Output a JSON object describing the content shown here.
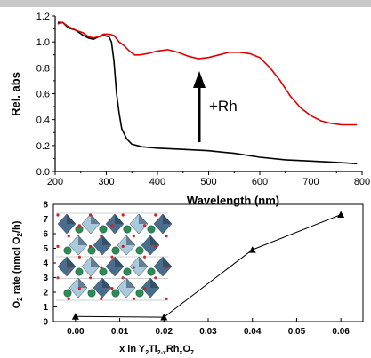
{
  "chart_data": [
    {
      "type": "line",
      "xlabel": "Wavelength (nm)",
      "ylabel": "Rel. abs",
      "xlim": [
        200,
        800
      ],
      "ylim": [
        0.0,
        1.2
      ],
      "x_ticks": [
        "200",
        "300",
        "400",
        "500",
        "600",
        "700",
        "800"
      ],
      "y_ticks": [
        "0.0",
        "0.2",
        "0.4",
        "0.6",
        "0.8",
        "1.0",
        "1.2"
      ],
      "annotation": "+Rh",
      "series": [
        {
          "color": "#000000",
          "points": [
            [
              205,
              1.15
            ],
            [
              215,
              1.15
            ],
            [
              225,
              1.11
            ],
            [
              240,
              1.09
            ],
            [
              255,
              1.05
            ],
            [
              265,
              1.03
            ],
            [
              275,
              1.02
            ],
            [
              285,
              1.04
            ],
            [
              295,
              1.05
            ],
            [
              305,
              1.04
            ],
            [
              310,
              1.0
            ],
            [
              315,
              0.85
            ],
            [
              320,
              0.6
            ],
            [
              325,
              0.45
            ],
            [
              330,
              0.33
            ],
            [
              340,
              0.25
            ],
            [
              350,
              0.21
            ],
            [
              370,
              0.19
            ],
            [
              400,
              0.18
            ],
            [
              450,
              0.17
            ],
            [
              500,
              0.16
            ],
            [
              550,
              0.14
            ],
            [
              600,
              0.11
            ],
            [
              650,
              0.09
            ],
            [
              700,
              0.08
            ],
            [
              750,
              0.07
            ],
            [
              790,
              0.06
            ]
          ]
        },
        {
          "color": "#e00000",
          "points": [
            [
              205,
              1.14
            ],
            [
              215,
              1.15
            ],
            [
              225,
              1.12
            ],
            [
              240,
              1.09
            ],
            [
              255,
              1.07
            ],
            [
              265,
              1.04
            ],
            [
              275,
              1.03
            ],
            [
              285,
              1.04
            ],
            [
              295,
              1.06
            ],
            [
              305,
              1.06
            ],
            [
              315,
              1.05
            ],
            [
              325,
              1.0
            ],
            [
              335,
              0.97
            ],
            [
              345,
              0.93
            ],
            [
              355,
              0.9
            ],
            [
              365,
              0.9
            ],
            [
              380,
              0.91
            ],
            [
              400,
              0.93
            ],
            [
              420,
              0.94
            ],
            [
              440,
              0.92
            ],
            [
              460,
              0.89
            ],
            [
              480,
              0.87
            ],
            [
              500,
              0.88
            ],
            [
              520,
              0.9
            ],
            [
              540,
              0.92
            ],
            [
              560,
              0.92
            ],
            [
              580,
              0.91
            ],
            [
              600,
              0.88
            ],
            [
              620,
              0.8
            ],
            [
              640,
              0.7
            ],
            [
              660,
              0.58
            ],
            [
              680,
              0.49
            ],
            [
              700,
              0.43
            ],
            [
              720,
              0.39
            ],
            [
              740,
              0.37
            ],
            [
              760,
              0.36
            ],
            [
              790,
              0.36
            ]
          ]
        }
      ]
    },
    {
      "type": "line",
      "xlabel": "x in Y2Ti2-xRhxO7",
      "ylabel": "O2 rate (nmol O2/h)",
      "xlim": [
        -0.005,
        0.065
      ],
      "ylim": [
        0,
        8
      ],
      "x_ticks": [
        "0.00",
        "0.01",
        "0.02",
        "0.03",
        "0.04",
        "0.05",
        "0.06"
      ],
      "y_ticks": [
        "0",
        "1",
        "2",
        "3",
        "4",
        "5",
        "6",
        "7",
        "8"
      ],
      "marker": "triangle",
      "series": [
        {
          "color": "#000000",
          "x": [
            0.0,
            0.02,
            0.04,
            0.06
          ],
          "values": [
            0.35,
            0.3,
            4.9,
            7.3
          ]
        }
      ]
    }
  ],
  "labels": {
    "top_xlabel": "Wavelength (nm)",
    "top_ylabel": "Rel. abs",
    "annotation": "+Rh",
    "bottom_ylabel_main": "O",
    "bottom_ylabel_sub1": "2",
    "bottom_ylabel_rate": " rate (nmol O",
    "bottom_ylabel_sub2": "2",
    "bottom_ylabel_end": "/h)",
    "bottom_xlabel_main": "x in Y",
    "bottom_xlabel_sub1": "2",
    "bottom_xlabel_ti": "Ti",
    "bottom_xlabel_sub2": "2-x",
    "bottom_xlabel_rh": "Rh",
    "bottom_xlabel_sub3": "x",
    "bottom_xlabel_o": "O",
    "bottom_xlabel_sub4": "7"
  },
  "inset": {
    "description_icon": "crystal-structure-icon",
    "colors": {
      "polyhedron": "#4a6d8c",
      "polyhedron_light": "#a9c9dd",
      "atom_green": "#2e8b57",
      "atom_red": "#d21f1f"
    }
  }
}
